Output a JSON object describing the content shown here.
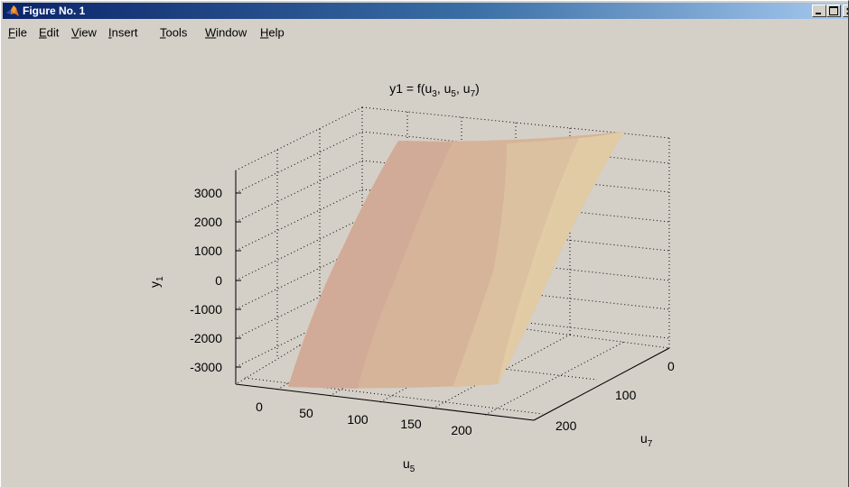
{
  "window": {
    "title": "Figure No. 1",
    "title_icon": "matlab-icon",
    "buttons": [
      "minimize-icon",
      "maximize-icon",
      "close-icon"
    ]
  },
  "menu": [
    {
      "label": "File",
      "name": "menu-file"
    },
    {
      "label": "Edit",
      "name": "menu-edit"
    },
    {
      "label": "View",
      "name": "menu-view"
    },
    {
      "label": "Insert",
      "name": "menu-insert"
    },
    {
      "label": "Tools",
      "name": "menu-tools"
    },
    {
      "label": "Window",
      "name": "menu-window"
    },
    {
      "label": "Help",
      "name": "menu-help"
    }
  ],
  "figure": {
    "background": "#d4d0c8",
    "surface_color": "#d6b499"
  },
  "chart_data": {
    "type": "surface",
    "title": "y1 = f(u3, u5, u7)",
    "xlabel": "u5",
    "ylabel": "u7",
    "zlabel": "y1",
    "xticks": [
      "0",
      "50",
      "100",
      "150",
      "200"
    ],
    "yticks": [
      "0",
      "100",
      "200"
    ],
    "zticks": [
      "3000",
      "2000",
      "1000",
      "0",
      "-1000",
      "-2000",
      "-3000"
    ],
    "grid": "dotted"
  }
}
